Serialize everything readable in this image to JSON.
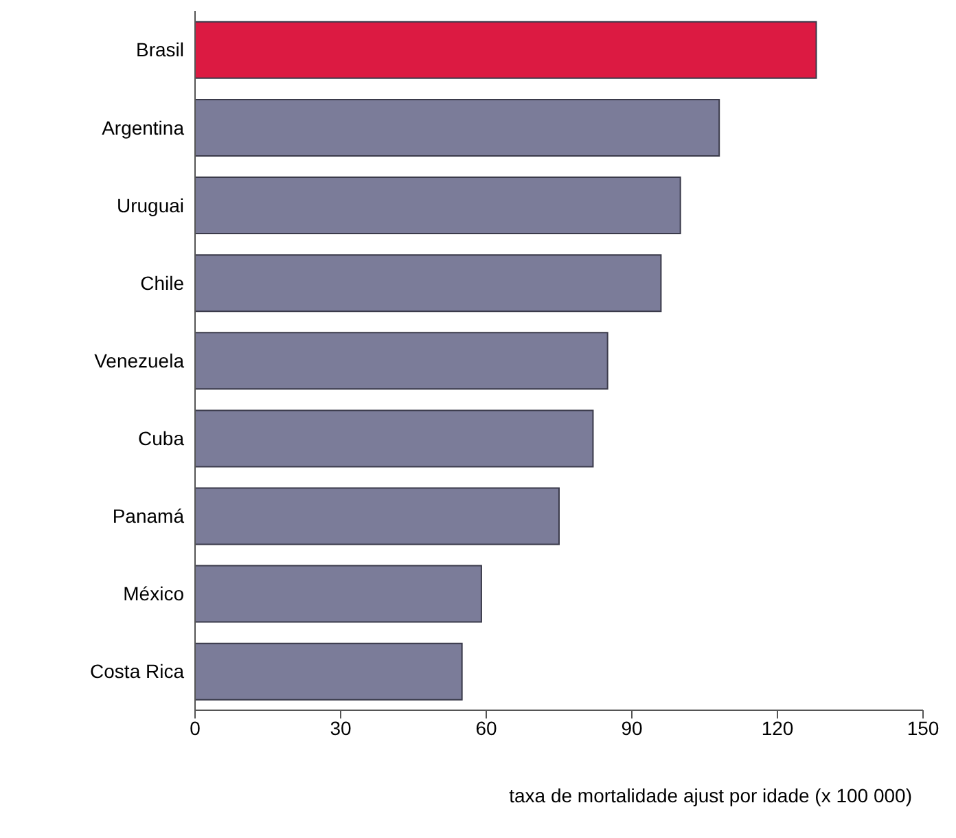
{
  "chart_data": {
    "type": "bar",
    "orientation": "horizontal",
    "xlabel": "taxa de mortalidade ajust por idade (x 100 000)",
    "categories": [
      "Brasil",
      "Argentina",
      "Uruguai",
      "Chile",
      "Venezuela",
      "Cuba",
      "Panamá",
      "México",
      "Costa Rica"
    ],
    "values": [
      128,
      108,
      100,
      96,
      85,
      82,
      75,
      59,
      55
    ],
    "colors": [
      "#dc1a42",
      "#7b7c99",
      "#7b7c99",
      "#7b7c99",
      "#7b7c99",
      "#7b7c99",
      "#7b7c99",
      "#7b7c99",
      "#7b7c99"
    ],
    "xlim": [
      0,
      150
    ],
    "xticks": [
      0,
      30,
      60,
      90,
      120,
      150
    ],
    "grid": false,
    "legend": false
  }
}
